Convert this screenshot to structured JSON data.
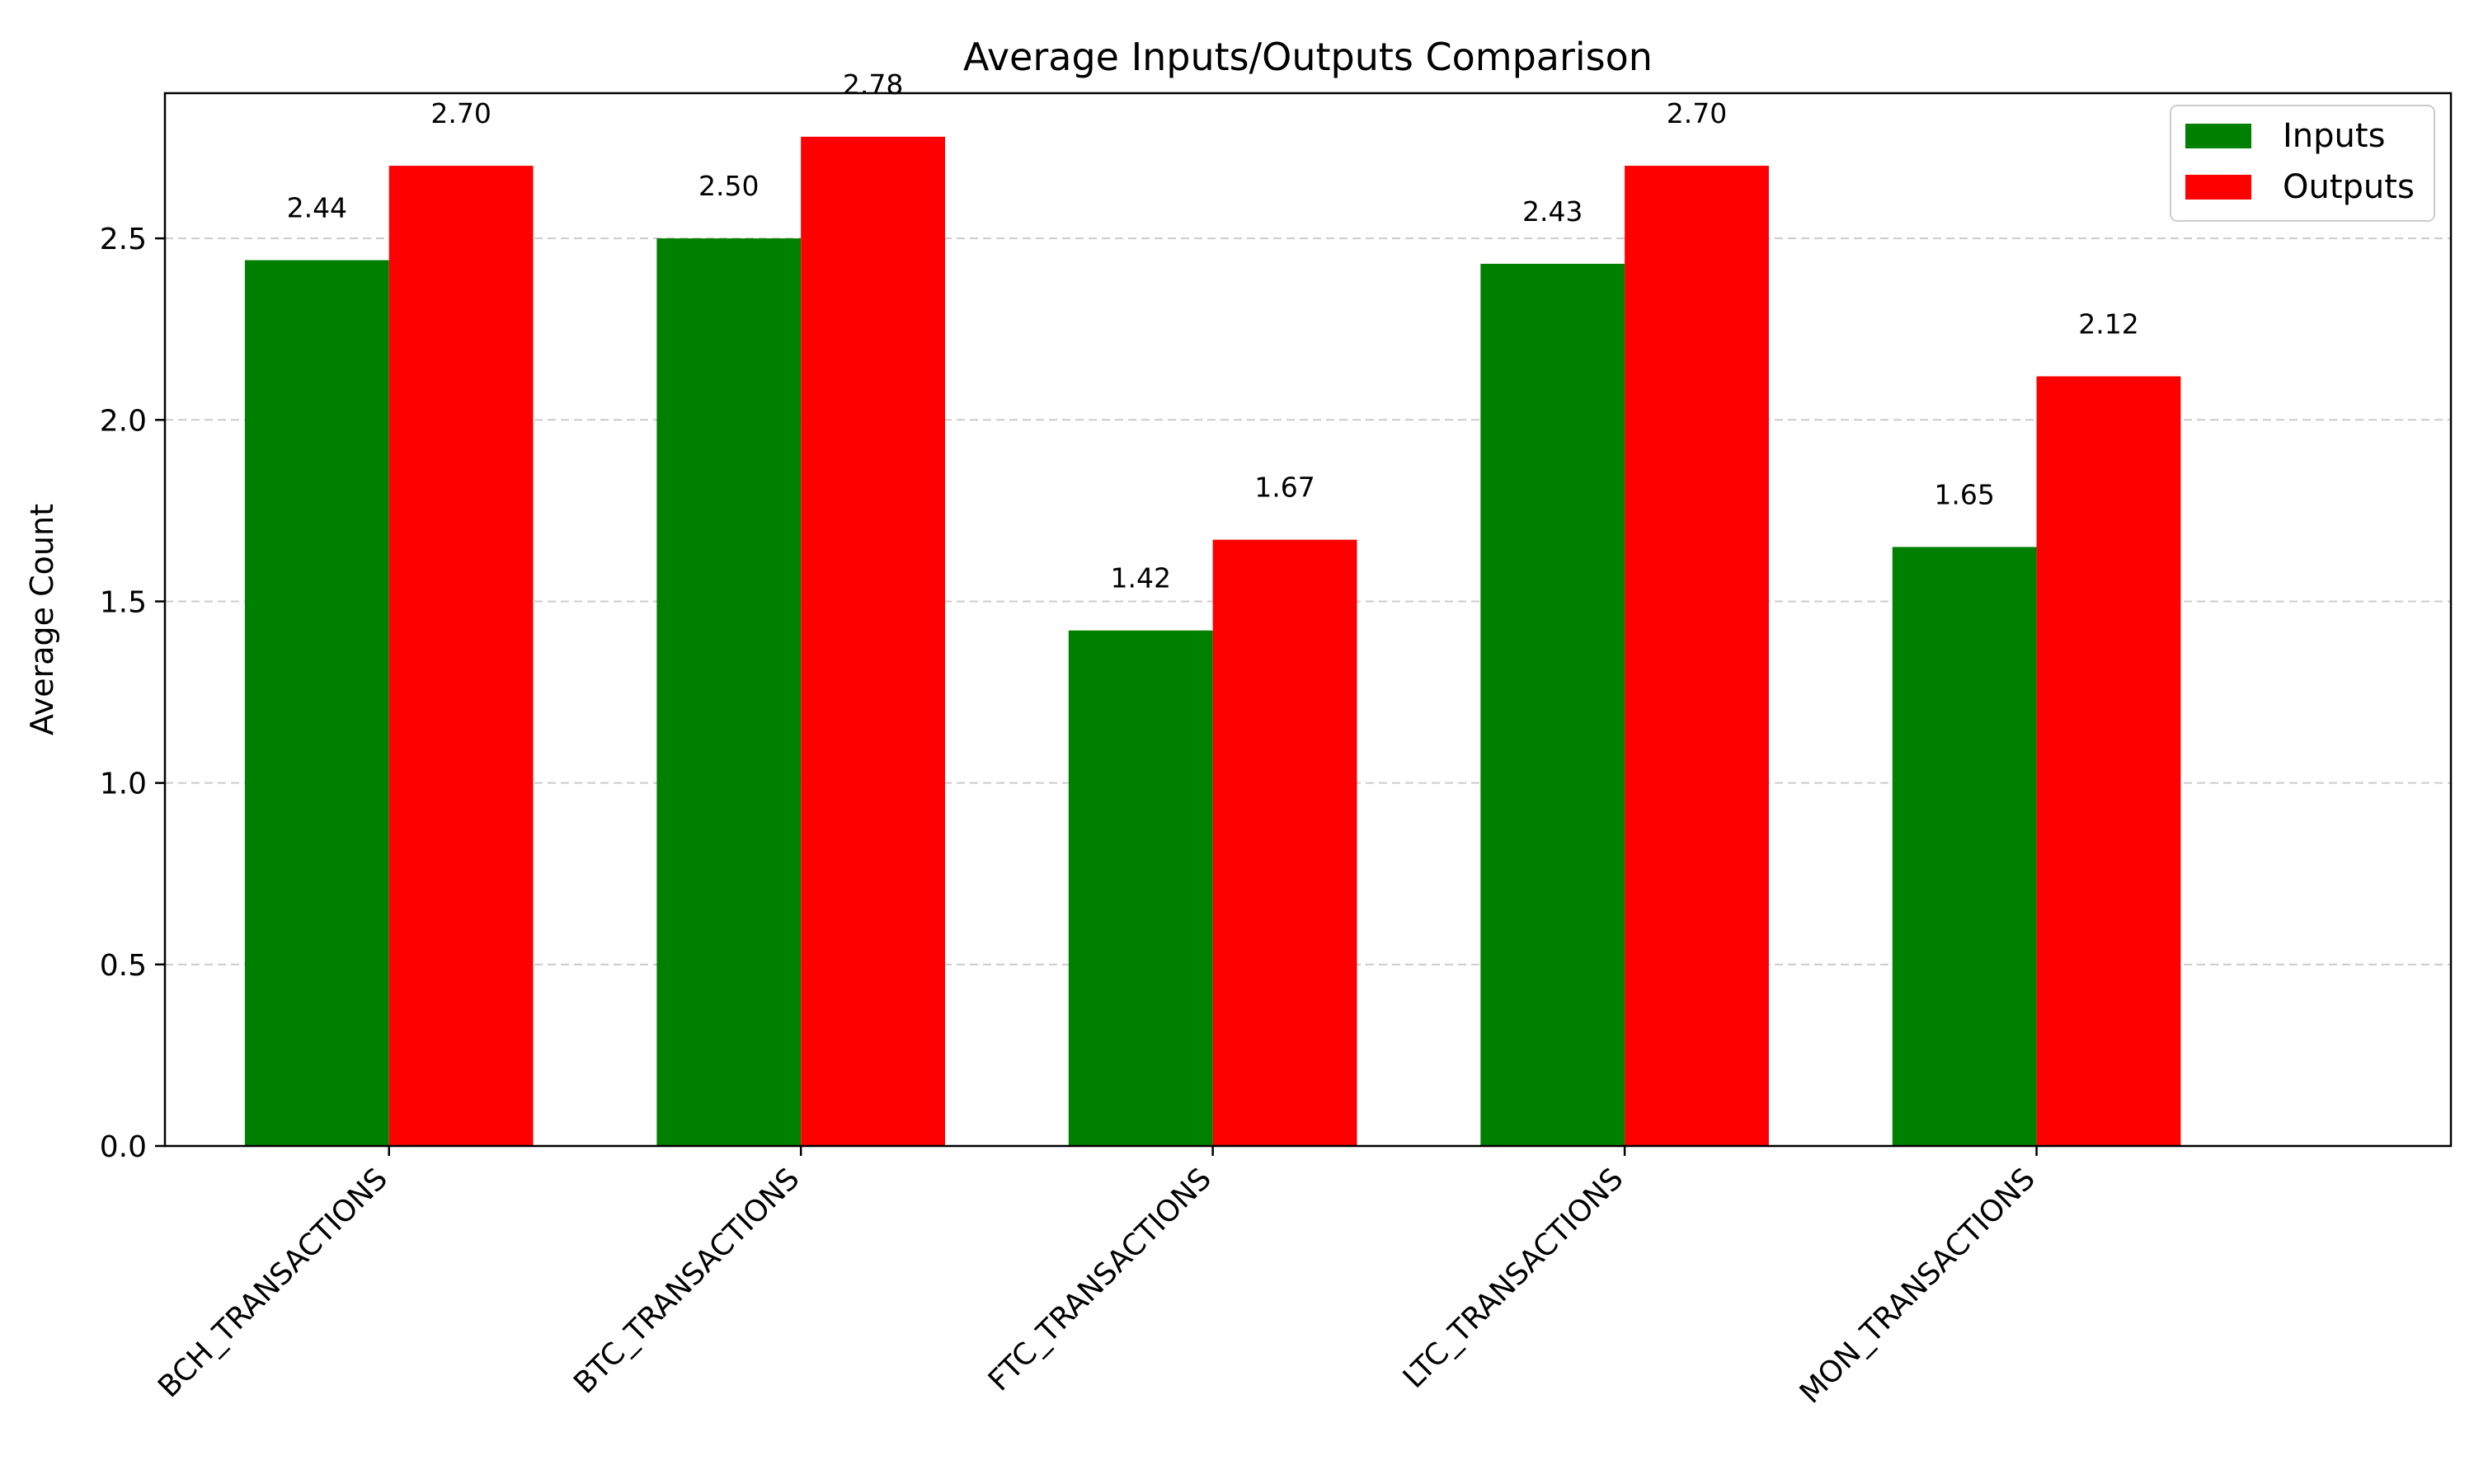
{
  "chart_data": {
    "type": "bar",
    "title": "Average Inputs/Outputs Comparison",
    "xlabel": "",
    "ylabel": "Average Count",
    "categories": [
      "BCH_TRANSACTIONS",
      "BTC_TRANSACTIONS",
      "FTC_TRANSACTIONS",
      "LTC_TRANSACTIONS",
      "MON_TRANSACTIONS"
    ],
    "series": [
      {
        "name": "Inputs",
        "values": [
          2.44,
          2.5,
          1.42,
          2.43,
          1.65
        ],
        "labels": [
          "2.44",
          "2.50",
          "1.42",
          "2.43",
          "1.65"
        ],
        "color": "#008000"
      },
      {
        "name": "Outputs",
        "values": [
          2.7,
          2.78,
          1.67,
          2.7,
          2.12
        ],
        "labels": [
          "2.70",
          "2.78",
          "1.67",
          "2.70",
          "2.12"
        ],
        "color": "#ff0000"
      }
    ],
    "ylim": [
      0,
      2.9
    ],
    "yticks": [
      0.0,
      0.5,
      1.0,
      1.5,
      2.0,
      2.5
    ],
    "ytick_labels": [
      "0.0",
      "0.5",
      "1.0",
      "1.5",
      "2.0",
      "2.5"
    ],
    "grid": "y-dashed",
    "legend_position": "top-right"
  }
}
